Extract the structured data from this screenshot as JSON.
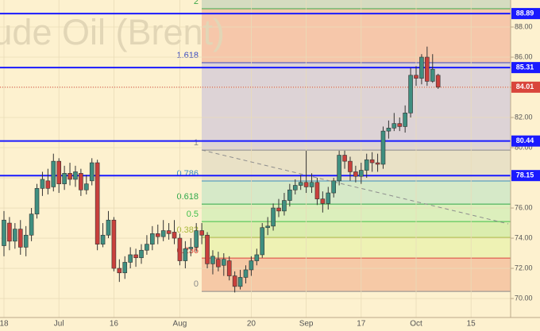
{
  "chart_data": {
    "type": "candlestick",
    "watermark": "Crude Oil (Brent)",
    "categories": [
      "18",
      null,
      null,
      null,
      null,
      null,
      null,
      null,
      null,
      null,
      "Jul",
      null,
      null,
      null,
      null,
      null,
      null,
      null,
      null,
      null,
      "16",
      null,
      null,
      null,
      null,
      null,
      null,
      null,
      null,
      null,
      null,
      null,
      "Aug",
      null,
      null,
      null,
      null,
      null,
      null,
      null,
      null,
      null,
      null,
      null,
      null,
      "20",
      null,
      null,
      null,
      null,
      null,
      null,
      null,
      null,
      null,
      "Sep",
      null,
      null,
      null,
      null,
      null,
      null,
      null,
      null,
      null,
      "17",
      null,
      null,
      null,
      null,
      null,
      null,
      null,
      null,
      null,
      "Oct",
      null,
      null,
      null,
      null,
      null,
      null,
      null,
      null,
      null,
      "15",
      null,
      null,
      null,
      null,
      null,
      null,
      null
    ],
    "open": [
      73.5,
      75.0,
      73.8,
      74.6,
      73.4,
      74.2,
      75.6,
      77.3,
      77.8,
      77.4,
      79.1,
      77.6,
      78.3,
      77.9,
      78.3,
      77.2,
      77.8,
      79.0,
      73.6,
      74.2,
      75.2,
      72.0,
      71.7,
      72.4,
      72.9,
      72.7,
      73.2,
      73.6,
      74.3,
      74.1,
      74.5,
      74.4,
      74.0,
      72.5,
      73.3,
      73.4,
      74.5,
      74.2,
      72.3,
      72.6,
      72.2,
      72.5,
      71.5,
      70.8,
      71.4,
      71.9,
      72.5,
      72.9,
      74.7,
      74.8,
      76.0,
      75.8,
      76.5,
      77.2,
      77.5,
      77.7,
      77.4,
      77.7,
      76.6,
      76.3,
      77.0,
      77.8,
      79.5,
      79.1,
      78.4,
      78.1,
      78.5,
      79.2,
      79.0,
      78.9,
      81.1,
      81.3,
      81.6,
      81.4,
      82.3,
      84.8,
      84.6,
      86.0,
      84.4,
      84.8,
      null,
      null,
      null,
      null,
      null,
      null,
      null,
      null,
      null,
      null,
      null,
      null,
      null
    ],
    "high": [
      75.8,
      75.4,
      75.0,
      75.2,
      74.8,
      76.0,
      77.6,
      78.4,
      78.6,
      79.6,
      79.3,
      78.8,
      79.0,
      78.8,
      78.6,
      78.2,
      79.3,
      79.2,
      75.0,
      75.8,
      75.4,
      72.6,
      72.8,
      73.4,
      73.3,
      73.6,
      74.2,
      74.8,
      74.9,
      75.2,
      75.0,
      75.2,
      74.3,
      73.8,
      74.0,
      75.0,
      75.0,
      74.4,
      73.2,
      73.1,
      73.0,
      72.8,
      71.8,
      71.9,
      72.2,
      72.8,
      73.3,
      75.0,
      75.4,
      76.3,
      76.6,
      77.0,
      77.6,
      77.9,
      78.2,
      79.8,
      78.3,
      78.0,
      77.1,
      77.4,
      78.0,
      79.8,
      79.8,
      79.4,
      78.8,
      79.0,
      79.6,
      79.7,
      79.6,
      81.4,
      81.8,
      82.3,
      82.0,
      82.8,
      85.3,
      85.4,
      86.2,
      86.7,
      86.2,
      84.9,
      null,
      null,
      null,
      null,
      null,
      null,
      null,
      null,
      null,
      null,
      null,
      null,
      null
    ],
    "low": [
      72.8,
      73.2,
      73.3,
      72.9,
      72.8,
      73.8,
      75.3,
      76.8,
      76.9,
      77.1,
      77.0,
      77.2,
      77.5,
      77.4,
      76.8,
      76.9,
      77.5,
      73.2,
      73.4,
      74.0,
      71.8,
      71.1,
      71.3,
      72.0,
      72.1,
      72.3,
      72.9,
      73.2,
      73.6,
      73.8,
      73.9,
      73.6,
      72.2,
      72.0,
      72.8,
      73.1,
      73.6,
      72.0,
      71.6,
      71.8,
      71.5,
      71.2,
      70.4,
      70.6,
      71.0,
      71.5,
      72.2,
      72.7,
      74.2,
      74.5,
      75.4,
      75.5,
      76.1,
      76.9,
      77.2,
      77.0,
      77.0,
      76.2,
      75.7,
      75.9,
      76.7,
      77.5,
      78.6,
      77.8,
      77.7,
      77.6,
      78.0,
      78.4,
      78.4,
      78.6,
      80.6,
      81.1,
      81.1,
      81.0,
      82.0,
      84.1,
      84.2,
      84.1,
      84.3,
      83.9,
      null,
      null,
      null,
      null,
      null,
      null,
      null,
      null,
      null,
      null,
      null,
      null,
      null
    ],
    "close": [
      75.2,
      73.8,
      74.6,
      73.4,
      74.2,
      75.6,
      77.3,
      77.9,
      77.3,
      79.1,
      77.6,
      78.3,
      77.9,
      78.4,
      77.2,
      77.6,
      79.0,
      73.6,
      74.2,
      75.2,
      72.0,
      71.7,
      72.4,
      72.9,
      72.7,
      73.2,
      73.6,
      74.3,
      74.1,
      74.5,
      74.3,
      74.0,
      72.5,
      73.3,
      73.4,
      74.5,
      74.2,
      72.3,
      72.8,
      72.1,
      72.6,
      71.5,
      70.8,
      71.4,
      71.9,
      72.5,
      72.9,
      74.7,
      74.8,
      76.0,
      75.8,
      76.5,
      77.2,
      77.5,
      77.7,
      77.4,
      77.7,
      76.6,
      76.3,
      77.0,
      77.8,
      79.5,
      79.1,
      78.4,
      78.1,
      78.5,
      79.2,
      79.0,
      78.9,
      81.1,
      81.3,
      81.6,
      81.4,
      82.3,
      84.8,
      84.6,
      86.0,
      84.4,
      85.2,
      84.01,
      null,
      null,
      null,
      null,
      null,
      null,
      null,
      null,
      null,
      null,
      null,
      null,
      null
    ],
    "up_color": "#3f8f80",
    "down_color": "#c9403c",
    "ylim": [
      68.74,
      89.79
    ],
    "yticks": [
      {
        "value": 70,
        "label": "70.00"
      },
      {
        "value": 72,
        "label": "72.00"
      },
      {
        "value": 74,
        "label": "74.00"
      },
      {
        "value": 76,
        "label": "76.00"
      },
      {
        "value": 78,
        "label": "78.00"
      },
      {
        "value": 80,
        "label": "80.00"
      },
      {
        "value": 82,
        "label": "82.00"
      },
      {
        "value": 84,
        "label": "84.00"
      },
      {
        "value": 86,
        "label": "86.00"
      },
      {
        "value": 88,
        "label": "88.00"
      }
    ],
    "grid": true,
    "hlines": [
      {
        "value": 88.89,
        "color": "#1a1aff"
      },
      {
        "value": 85.31,
        "color": "#1a1aff"
      },
      {
        "value": 80.44,
        "color": "#1a1aff"
      },
      {
        "value": 78.15,
        "color": "#1a1aff"
      }
    ],
    "last_price": {
      "value": 84.01,
      "color": "#d9463c"
    },
    "fibonacci": [
      {
        "level": 0,
        "price": 70.47,
        "color": "#8a8a8a",
        "fill": "#f6c9a6"
      },
      {
        "level": 0.236,
        "price": 72.68,
        "color": "#d9463c",
        "fill": "#eef2b4"
      },
      {
        "level": 0.382,
        "price": 74.05,
        "color": "#a8b83a",
        "fill": "#dbedae"
      },
      {
        "level": 0.5,
        "price": 75.1,
        "color": "#3fbf4a",
        "fill": "#dcefbc"
      },
      {
        "level": 0.618,
        "price": 76.26,
        "color": "#2fa84a",
        "fill": "#d6e9c8"
      },
      {
        "level": 0.786,
        "price": 77.79,
        "color": "#3a8ec0",
        "fill": "#e9e1c6"
      },
      {
        "level": 1,
        "price": 79.84,
        "color": "#8a8a8a",
        "fill": "#ddd3d6"
      },
      {
        "level": 1.618,
        "price": 85.63,
        "color": "#3a4ac0",
        "fill": "#f6c7aa"
      },
      {
        "level": 2,
        "price": 89.21,
        "color": "#3fa84a",
        "fill": "#d5dcc0"
      }
    ]
  }
}
